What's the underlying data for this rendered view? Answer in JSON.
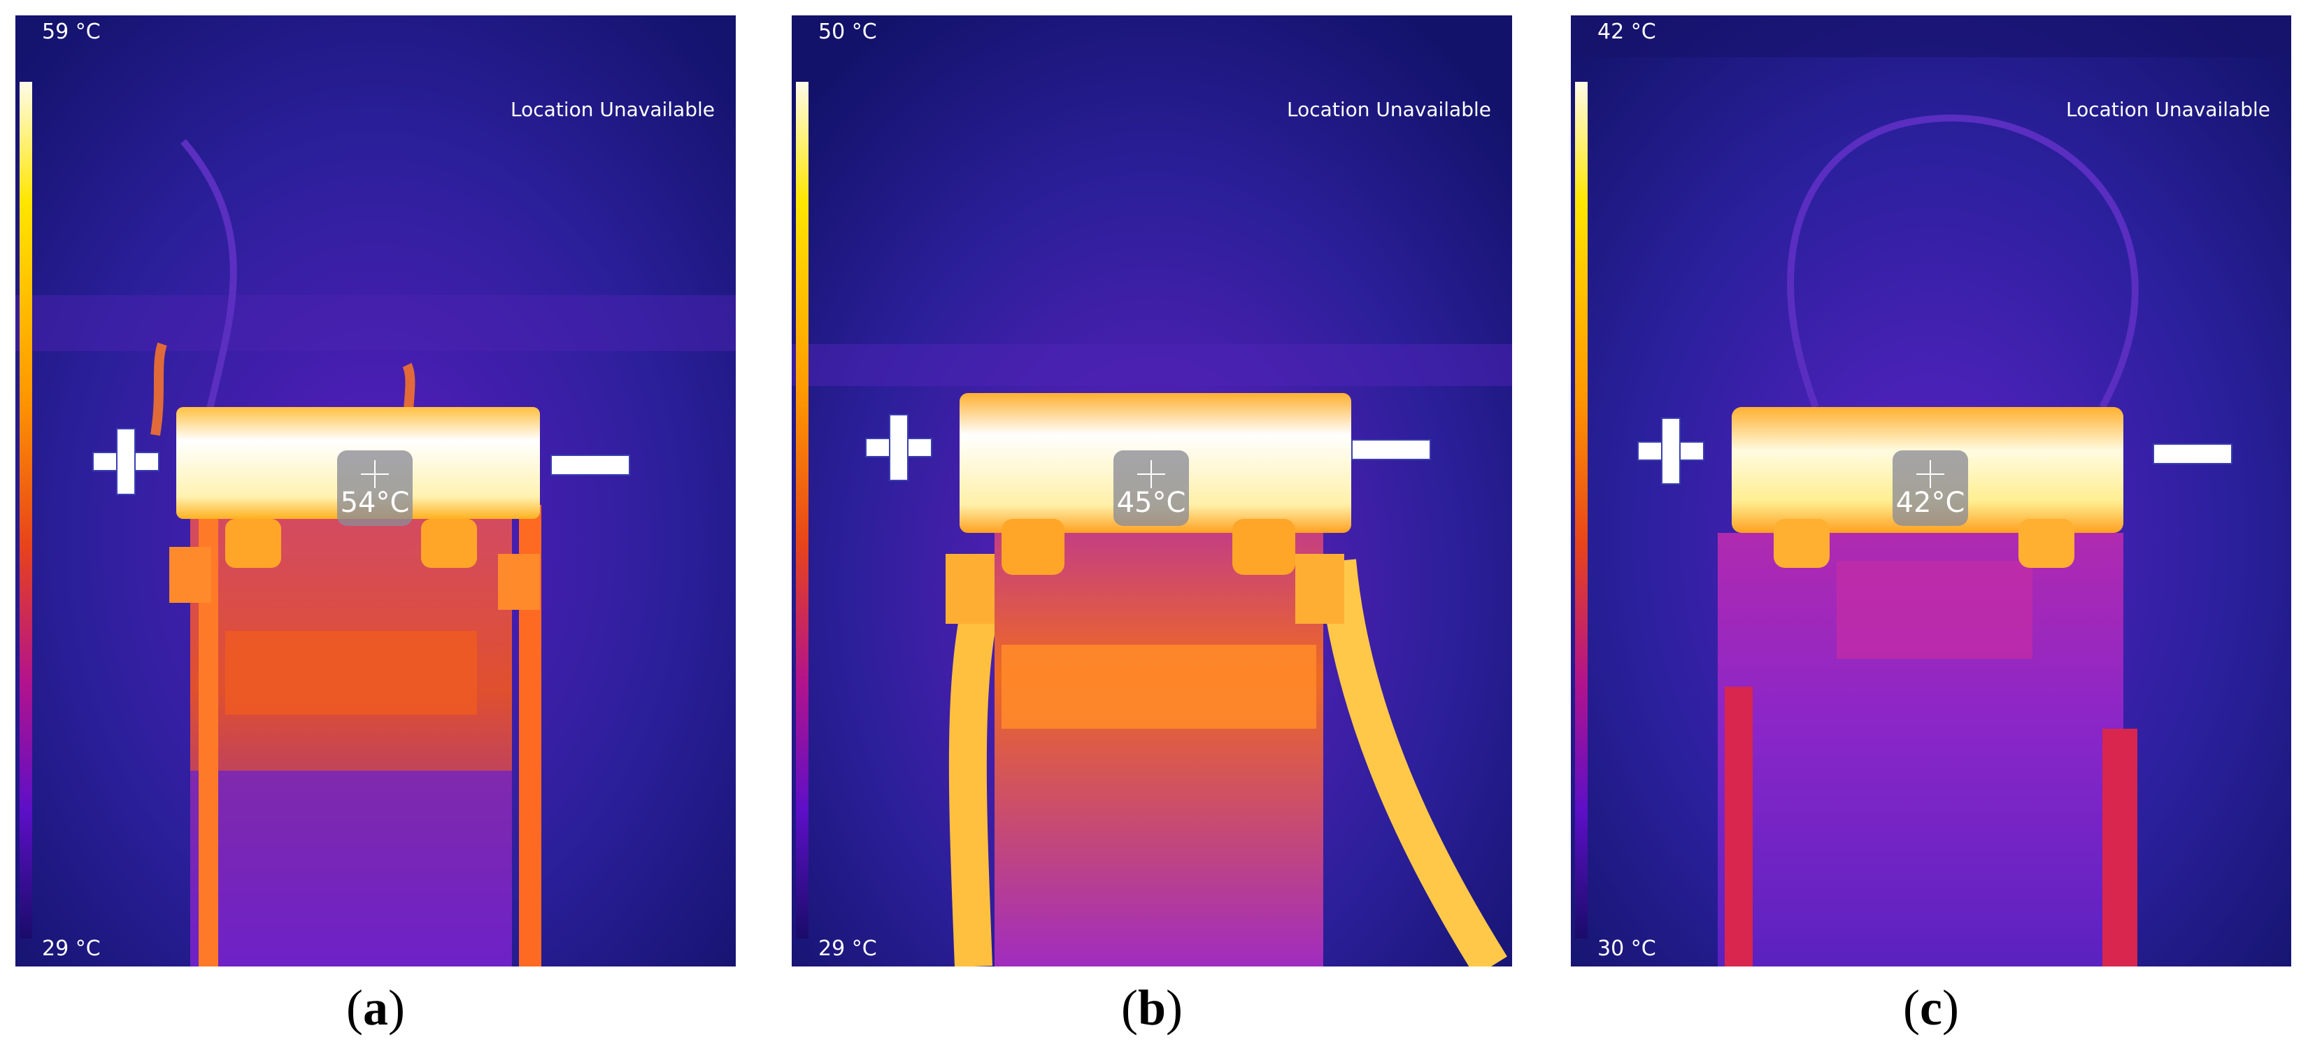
{
  "panels": [
    {
      "id": "a",
      "scale_max": "59 °C",
      "scale_min": "29 °C",
      "location": "Location Unavailable",
      "spot_temp": "54°C",
      "caption_open": "(",
      "caption_letter": "a",
      "caption_close": ")"
    },
    {
      "id": "b",
      "scale_max": "50 °C",
      "scale_min": "29 °C",
      "location": "Location Unavailable",
      "spot_temp": "45°C",
      "caption_open": "(",
      "caption_letter": "b",
      "caption_close": ")"
    },
    {
      "id": "c",
      "scale_max": "42 °C",
      "scale_min": "30 °C",
      "location": "Location Unavailable",
      "spot_temp": "42°C",
      "caption_open": "(",
      "caption_letter": "c",
      "caption_close": ")"
    }
  ],
  "colors": {
    "background": "#1e1a8a",
    "hot": "#fffbe0",
    "warm": "#ffae1a",
    "mid": "#e0501e",
    "cool": "#7a1fd0"
  }
}
